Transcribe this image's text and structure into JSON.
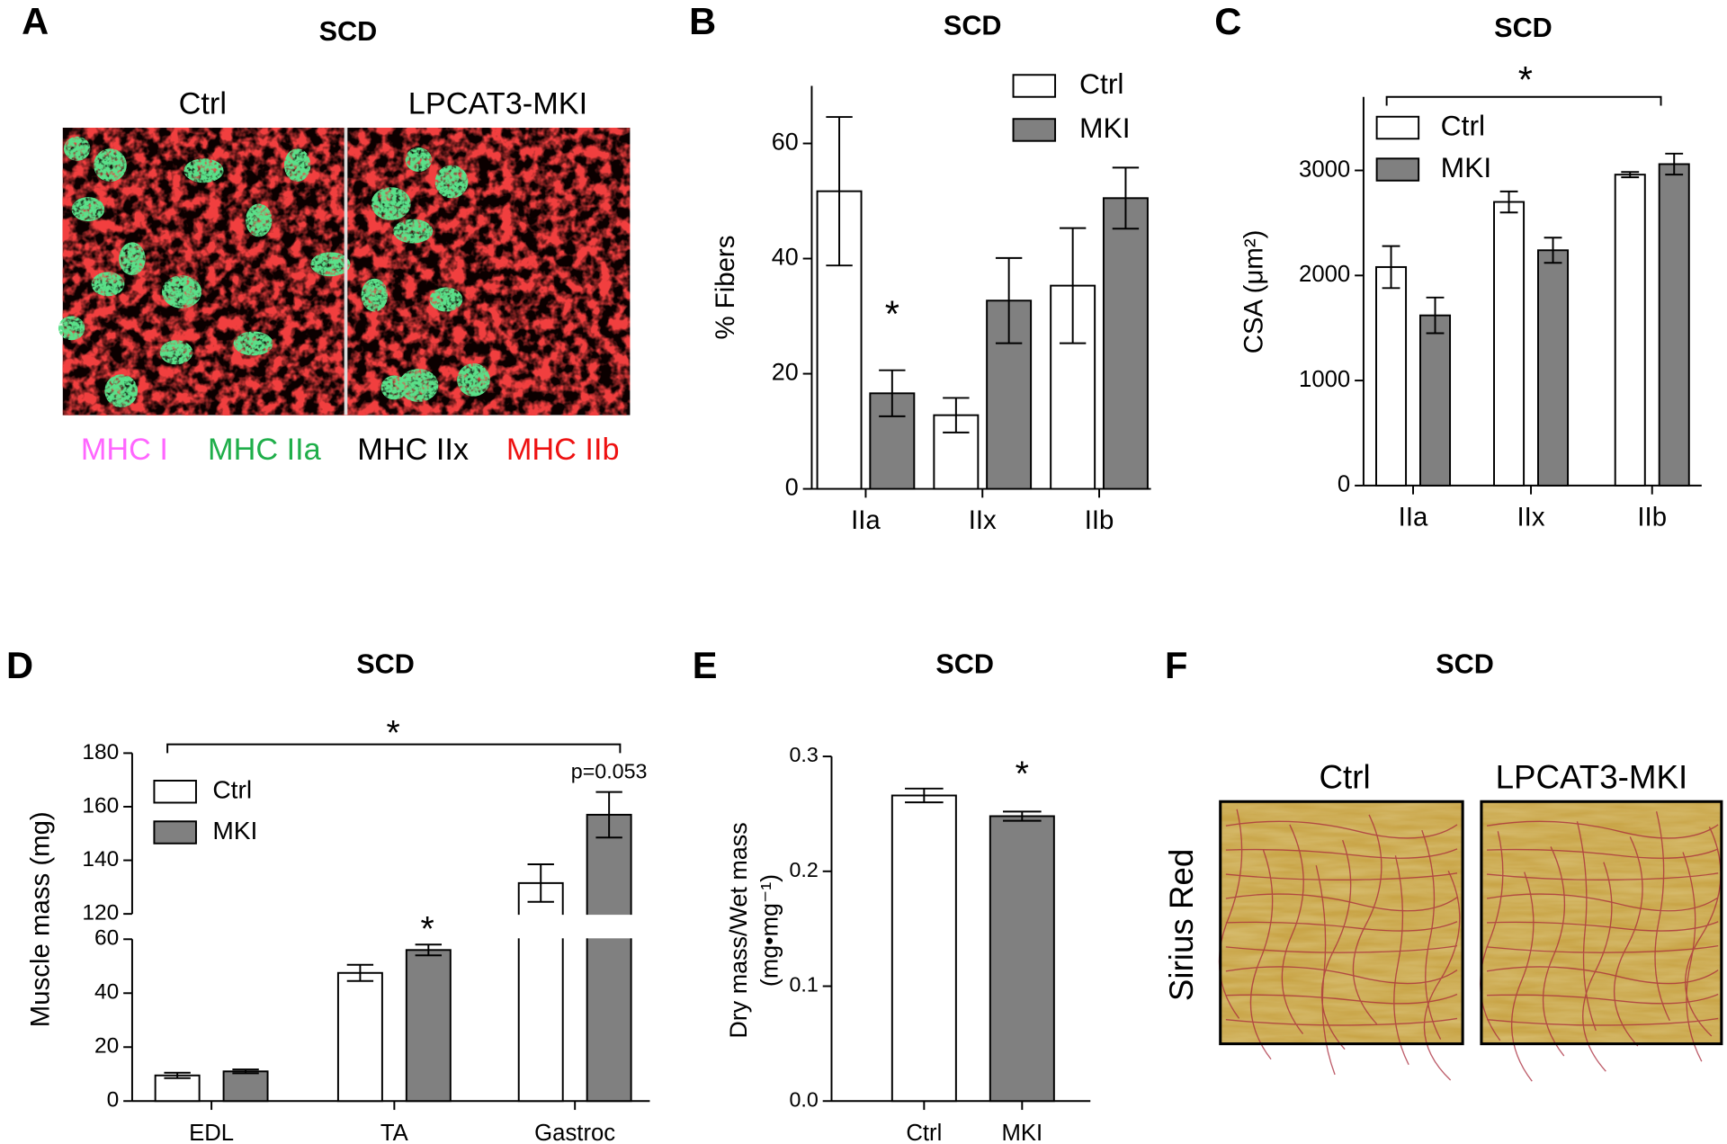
{
  "chart_data": [
    {
      "type": "image",
      "label": "A",
      "title": "SCD",
      "panels": [
        "Ctrl",
        "LPCAT3-MKI"
      ],
      "legend": [
        {
          "name": "MHC I",
          "color": "#ff66ff"
        },
        {
          "name": "MHC IIa",
          "color": "#1fae4a"
        },
        {
          "name": "MHC IIx",
          "color": "#000000"
        },
        {
          "name": "MHC IIb",
          "color": "#ee1111"
        }
      ]
    },
    {
      "type": "bar",
      "label": "B",
      "title": "SCD",
      "ylabel": "% Fibers",
      "categories": [
        "IIa",
        "IIx",
        "IIb"
      ],
      "series": [
        {
          "name": "Ctrl",
          "color": "#ffffff",
          "values": [
            51.7,
            12.8,
            35.3
          ],
          "errors": [
            12.9,
            3.0,
            10.0
          ]
        },
        {
          "name": "MKI",
          "color": "#808080",
          "values": [
            16.6,
            32.7,
            50.5
          ],
          "errors": [
            4.0,
            7.4,
            5.3
          ]
        }
      ],
      "ylim": [
        0,
        70
      ],
      "yticks": [
        0,
        20,
        40,
        60
      ],
      "annotations": [
        "*"
      ]
    },
    {
      "type": "bar",
      "label": "C",
      "title": "SCD",
      "ylabel": "CSA (μm²)",
      "categories": [
        "IIa",
        "IIx",
        "IIb"
      ],
      "series": [
        {
          "name": "Ctrl",
          "color": "#ffffff",
          "values": [
            2080,
            2700,
            2960
          ],
          "errors": [
            200,
            100,
            25
          ]
        },
        {
          "name": "MKI",
          "color": "#808080",
          "values": [
            1620,
            2240,
            3060
          ],
          "errors": [
            170,
            120,
            100
          ]
        }
      ],
      "ylim": [
        0,
        3700
      ],
      "yticks": [
        0,
        1000,
        2000,
        3000
      ],
      "annotations": [
        "*"
      ]
    },
    {
      "type": "bar",
      "label": "D",
      "title": "SCD",
      "ylabel": "Muscle mass (mg)",
      "categories": [
        "EDL",
        "TA",
        "Gastroc"
      ],
      "series": [
        {
          "name": "Ctrl",
          "color": "#ffffff",
          "values": [
            9.5,
            47.5,
            131.5
          ],
          "errors": [
            1.0,
            3.0,
            7.0
          ]
        },
        {
          "name": "MKI",
          "color": "#808080",
          "values": [
            11,
            56,
            157
          ],
          "errors": [
            0.7,
            2.0,
            8.5
          ]
        }
      ],
      "ylim": [
        0,
        180
      ],
      "ybreak": [
        60,
        120
      ],
      "yticks": [
        0,
        20,
        40,
        60,
        120,
        140,
        160,
        180
      ],
      "annotations": [
        "*",
        "p=0.053",
        "*"
      ]
    },
    {
      "type": "bar",
      "label": "E",
      "title": "SCD",
      "ylabel": [
        "Dry mass/Wet mass",
        "(mg•mg⁻¹)"
      ],
      "categories": [
        "Ctrl",
        "MKI"
      ],
      "values": [
        0.266,
        0.248
      ],
      "errors": [
        0.006,
        0.004
      ],
      "colors": [
        "#ffffff",
        "#808080"
      ],
      "ylim": [
        0,
        0.3
      ],
      "yticks": [
        {
          "value": 0,
          "label": "0.0"
        },
        0.1,
        0.2,
        0.3
      ],
      "annotations": [
        "*"
      ]
    },
    {
      "type": "image",
      "label": "F",
      "title": "SCD",
      "panels": [
        "Ctrl",
        "LPCAT3-MKI"
      ],
      "ylabel": "Sirius Red"
    }
  ]
}
